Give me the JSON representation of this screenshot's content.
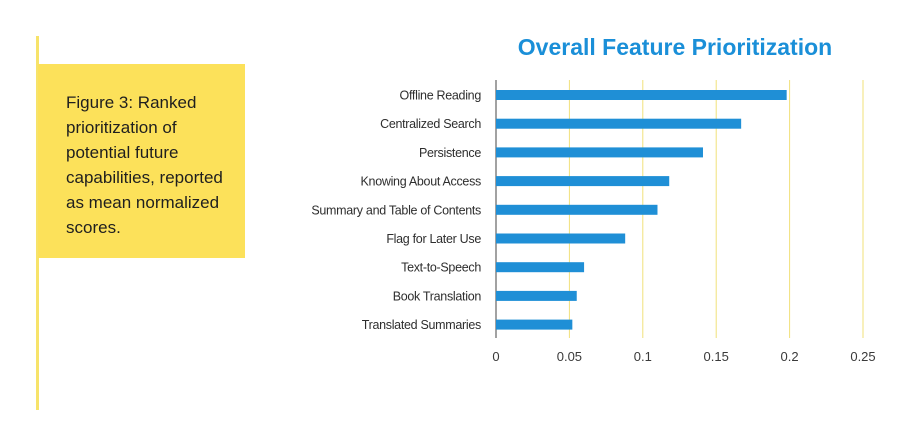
{
  "caption": {
    "text": "Figure 3: Ranked prioritization of potential future capabilities, reported as mean normalized scores."
  },
  "chart_data": {
    "type": "bar",
    "orientation": "horizontal",
    "title": "Overall Feature Prioritization",
    "categories": [
      "Offline Reading",
      "Centralized Search",
      "Persistence",
      "Knowing About Access",
      "Summary and Table of Contents",
      "Flag for Later Use",
      "Text-to-Speech",
      "Book Translation",
      "Translated Summaries"
    ],
    "values": [
      0.198,
      0.167,
      0.141,
      0.118,
      0.11,
      0.088,
      0.06,
      0.055,
      0.052
    ],
    "xlim": [
      0,
      0.25
    ],
    "xticks": [
      0,
      0.05,
      0.1,
      0.15,
      0.2,
      0.25
    ],
    "xticklabels": [
      "0",
      "0.05",
      "0.1",
      "0.15",
      "0.2",
      "0.25"
    ],
    "grid": true,
    "colors": {
      "bar": "#1f8fd6",
      "grid": "#f1e07a",
      "title": "#1a8fd8",
      "caption_bg": "#fce15a"
    }
  }
}
